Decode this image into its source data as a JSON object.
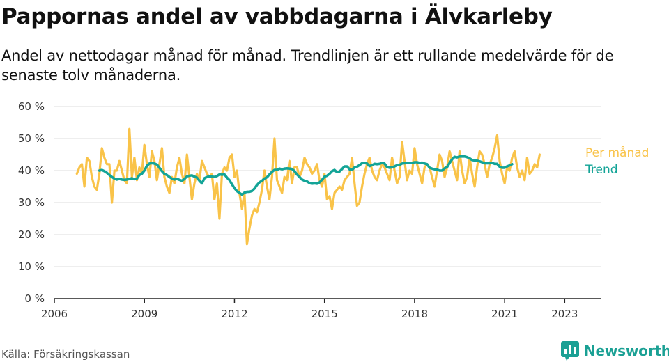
{
  "header": {
    "title": "Pappornas andel av vabbdagarna i Älvkarleby",
    "subtitle": "Andel av nettodagar månad för månad. Trendlinjen är ett rullande medelvärde för de senaste tolv månaderna."
  },
  "footer": {
    "source": "Källa: Försäkringskassan",
    "brand": "Newsworthy"
  },
  "colors": {
    "monthly": "#f9c349",
    "trend": "#13a497",
    "grid": "#dddddd",
    "axis": "#222222",
    "brand": "#1aa094"
  },
  "chart_data": {
    "type": "line",
    "title": "Pappornas andel av vabbdagarna i Älvkarleby",
    "xlabel": "",
    "ylabel": "",
    "xlim": [
      2006,
      2024.2
    ],
    "ylim": [
      0,
      60
    ],
    "x_ticks": [
      2006,
      2009,
      2012,
      2015,
      2018,
      2021,
      2023
    ],
    "x_tick_labels": [
      "2006",
      "2009",
      "2012",
      "2015",
      "2018",
      "2021",
      "2023"
    ],
    "y_ticks": [
      0,
      10,
      20,
      30,
      40,
      50,
      60
    ],
    "y_tick_labels": [
      "0 %",
      "10 %",
      "20 %",
      "30 %",
      "40 %",
      "50 %",
      "60 %"
    ],
    "grid": true,
    "legend": "inline-right",
    "series": [
      {
        "name": "Per månad",
        "x_start": 2006.75,
        "x_step": 0.08333,
        "values": [
          39,
          41,
          42,
          35,
          44,
          43,
          38,
          35,
          34,
          39,
          47,
          44,
          42,
          42,
          30,
          40,
          40,
          43,
          40,
          37,
          36,
          53,
          38,
          44,
          37,
          41,
          39,
          48,
          42,
          38,
          46,
          43,
          37,
          42,
          47,
          38,
          35,
          33,
          38,
          36,
          41,
          44,
          39,
          36,
          45,
          38,
          31,
          36,
          39,
          37,
          43,
          41,
          39,
          38,
          39,
          31,
          36,
          25,
          39,
          41,
          40,
          44,
          45,
          38,
          40,
          33,
          28,
          33,
          17,
          22,
          26,
          28,
          27,
          30,
          34,
          40,
          35,
          31,
          38,
          50,
          37,
          35,
          33,
          38,
          37,
          43,
          36,
          41,
          41,
          38,
          40,
          44,
          42,
          41,
          39,
          40,
          42,
          37,
          35,
          39,
          31,
          32,
          28,
          33,
          34,
          35,
          34,
          37,
          38,
          39,
          44,
          36,
          29,
          30,
          35,
          39,
          42,
          44,
          40,
          38,
          37,
          40,
          42,
          41,
          39,
          37,
          44,
          40,
          36,
          38,
          49,
          43,
          37,
          40,
          39,
          47,
          42,
          39,
          36,
          41,
          42,
          41,
          38,
          35,
          40,
          45,
          43,
          38,
          41,
          46,
          43,
          40,
          37,
          46,
          40,
          36,
          38,
          44,
          39,
          35,
          41,
          46,
          45,
          42,
          38,
          42,
          44,
          47,
          51,
          43,
          39,
          36,
          41,
          40,
          44,
          46,
          41,
          38,
          40,
          37,
          44,
          39,
          40,
          42,
          41,
          45
        ]
      },
      {
        "name": "Trend",
        "x_start": 2007.5,
        "x_step": 0.08333,
        "values": [
          40,
          40.2,
          39.8,
          39.3,
          38.6,
          38,
          37.5,
          37.2,
          37.4,
          37.2,
          37.1,
          37.2,
          37.4,
          37.6,
          37.3,
          37.5,
          38.6,
          39,
          40,
          41.5,
          42.2,
          42.3,
          42.2,
          41.9,
          40.9,
          39.8,
          39,
          38.6,
          38,
          37.5,
          37.2,
          37.4,
          37.1,
          36.8,
          37.4,
          38.2,
          38.4,
          38.5,
          38.1,
          37.8,
          36.8,
          36,
          37.6,
          38,
          38.2,
          38.1,
          38,
          38.3,
          38.8,
          38.7,
          38.8,
          37.8,
          37,
          35.7,
          34.5,
          33.6,
          33,
          32.5,
          33.1,
          33.4,
          33.4,
          33.6,
          34.4,
          35.5,
          36.3,
          36.8,
          37.5,
          37.9,
          38.8,
          39.6,
          40.2,
          40.2,
          40.6,
          40.4,
          40.6,
          40.7,
          40.6,
          40.5,
          39.8,
          38.8,
          38,
          37.2,
          36.8,
          36.6,
          36.1,
          35.9,
          36,
          35.9,
          36.3,
          37.1,
          38.1,
          38.4,
          39,
          39.8,
          40.2,
          39.5,
          39.7,
          40.5,
          41.3,
          41.3,
          40.4,
          40.2,
          41,
          41.2,
          41.7,
          42.3,
          42.4,
          42.2,
          41.4,
          41.7,
          42.1,
          42,
          42.1,
          42.4,
          42.2,
          41.1,
          40.9,
          41,
          41.3,
          41.7,
          41.8,
          42.2,
          42.3,
          42.4,
          42.4,
          42.4,
          42.6,
          42.6,
          42.4,
          42.5,
          42.2,
          42,
          40.9,
          40.6,
          40.4,
          40.3,
          40,
          40,
          40.7,
          41.1,
          42.4,
          43.5,
          44.3,
          44.1,
          44.4,
          44.4,
          44.4,
          44.2,
          43.8,
          43.3,
          43.2,
          43.1,
          42.9,
          42.6,
          42.3,
          42.3,
          42.3,
          42.4,
          42.1,
          42.1,
          41.2,
          40.9,
          40.9,
          41.3,
          41.6,
          42
        ]
      }
    ],
    "annotations": [
      {
        "text": "Per månad",
        "series": "Per månad"
      },
      {
        "text": "Trend",
        "series": "Trend"
      }
    ]
  }
}
